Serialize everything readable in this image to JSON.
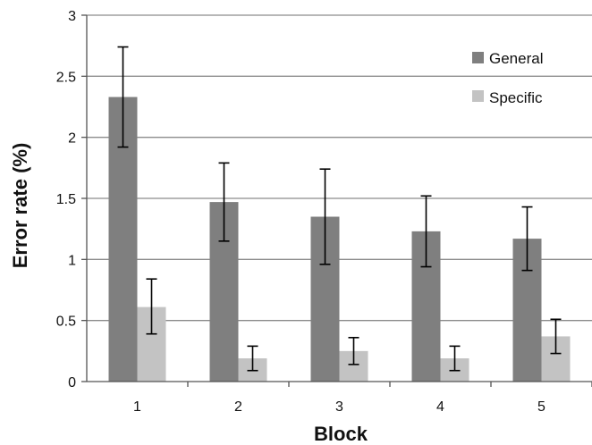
{
  "chart_data": {
    "type": "bar",
    "title": "",
    "xlabel": "Block",
    "ylabel": "Error rate (%)",
    "categories": [
      "1",
      "2",
      "3",
      "4",
      "5"
    ],
    "ylim": [
      0,
      3
    ],
    "yticks": [
      "0",
      "0.5",
      "1",
      "1.5",
      "2",
      "2.5",
      "3"
    ],
    "grid": true,
    "legend_position": "top-right",
    "series": [
      {
        "name": "General",
        "color": "#7f7f7f",
        "values": [
          2.33,
          1.47,
          1.35,
          1.23,
          1.17
        ],
        "error_low": [
          1.92,
          1.15,
          0.96,
          0.94,
          0.91
        ],
        "error_high": [
          2.74,
          1.79,
          1.74,
          1.52,
          1.43
        ]
      },
      {
        "name": "Specific",
        "color": "#c3c3c3",
        "values": [
          0.61,
          0.19,
          0.25,
          0.19,
          0.37
        ],
        "error_low": [
          0.39,
          0.09,
          0.14,
          0.09,
          0.23
        ],
        "error_high": [
          0.84,
          0.29,
          0.36,
          0.29,
          0.51
        ]
      }
    ]
  }
}
